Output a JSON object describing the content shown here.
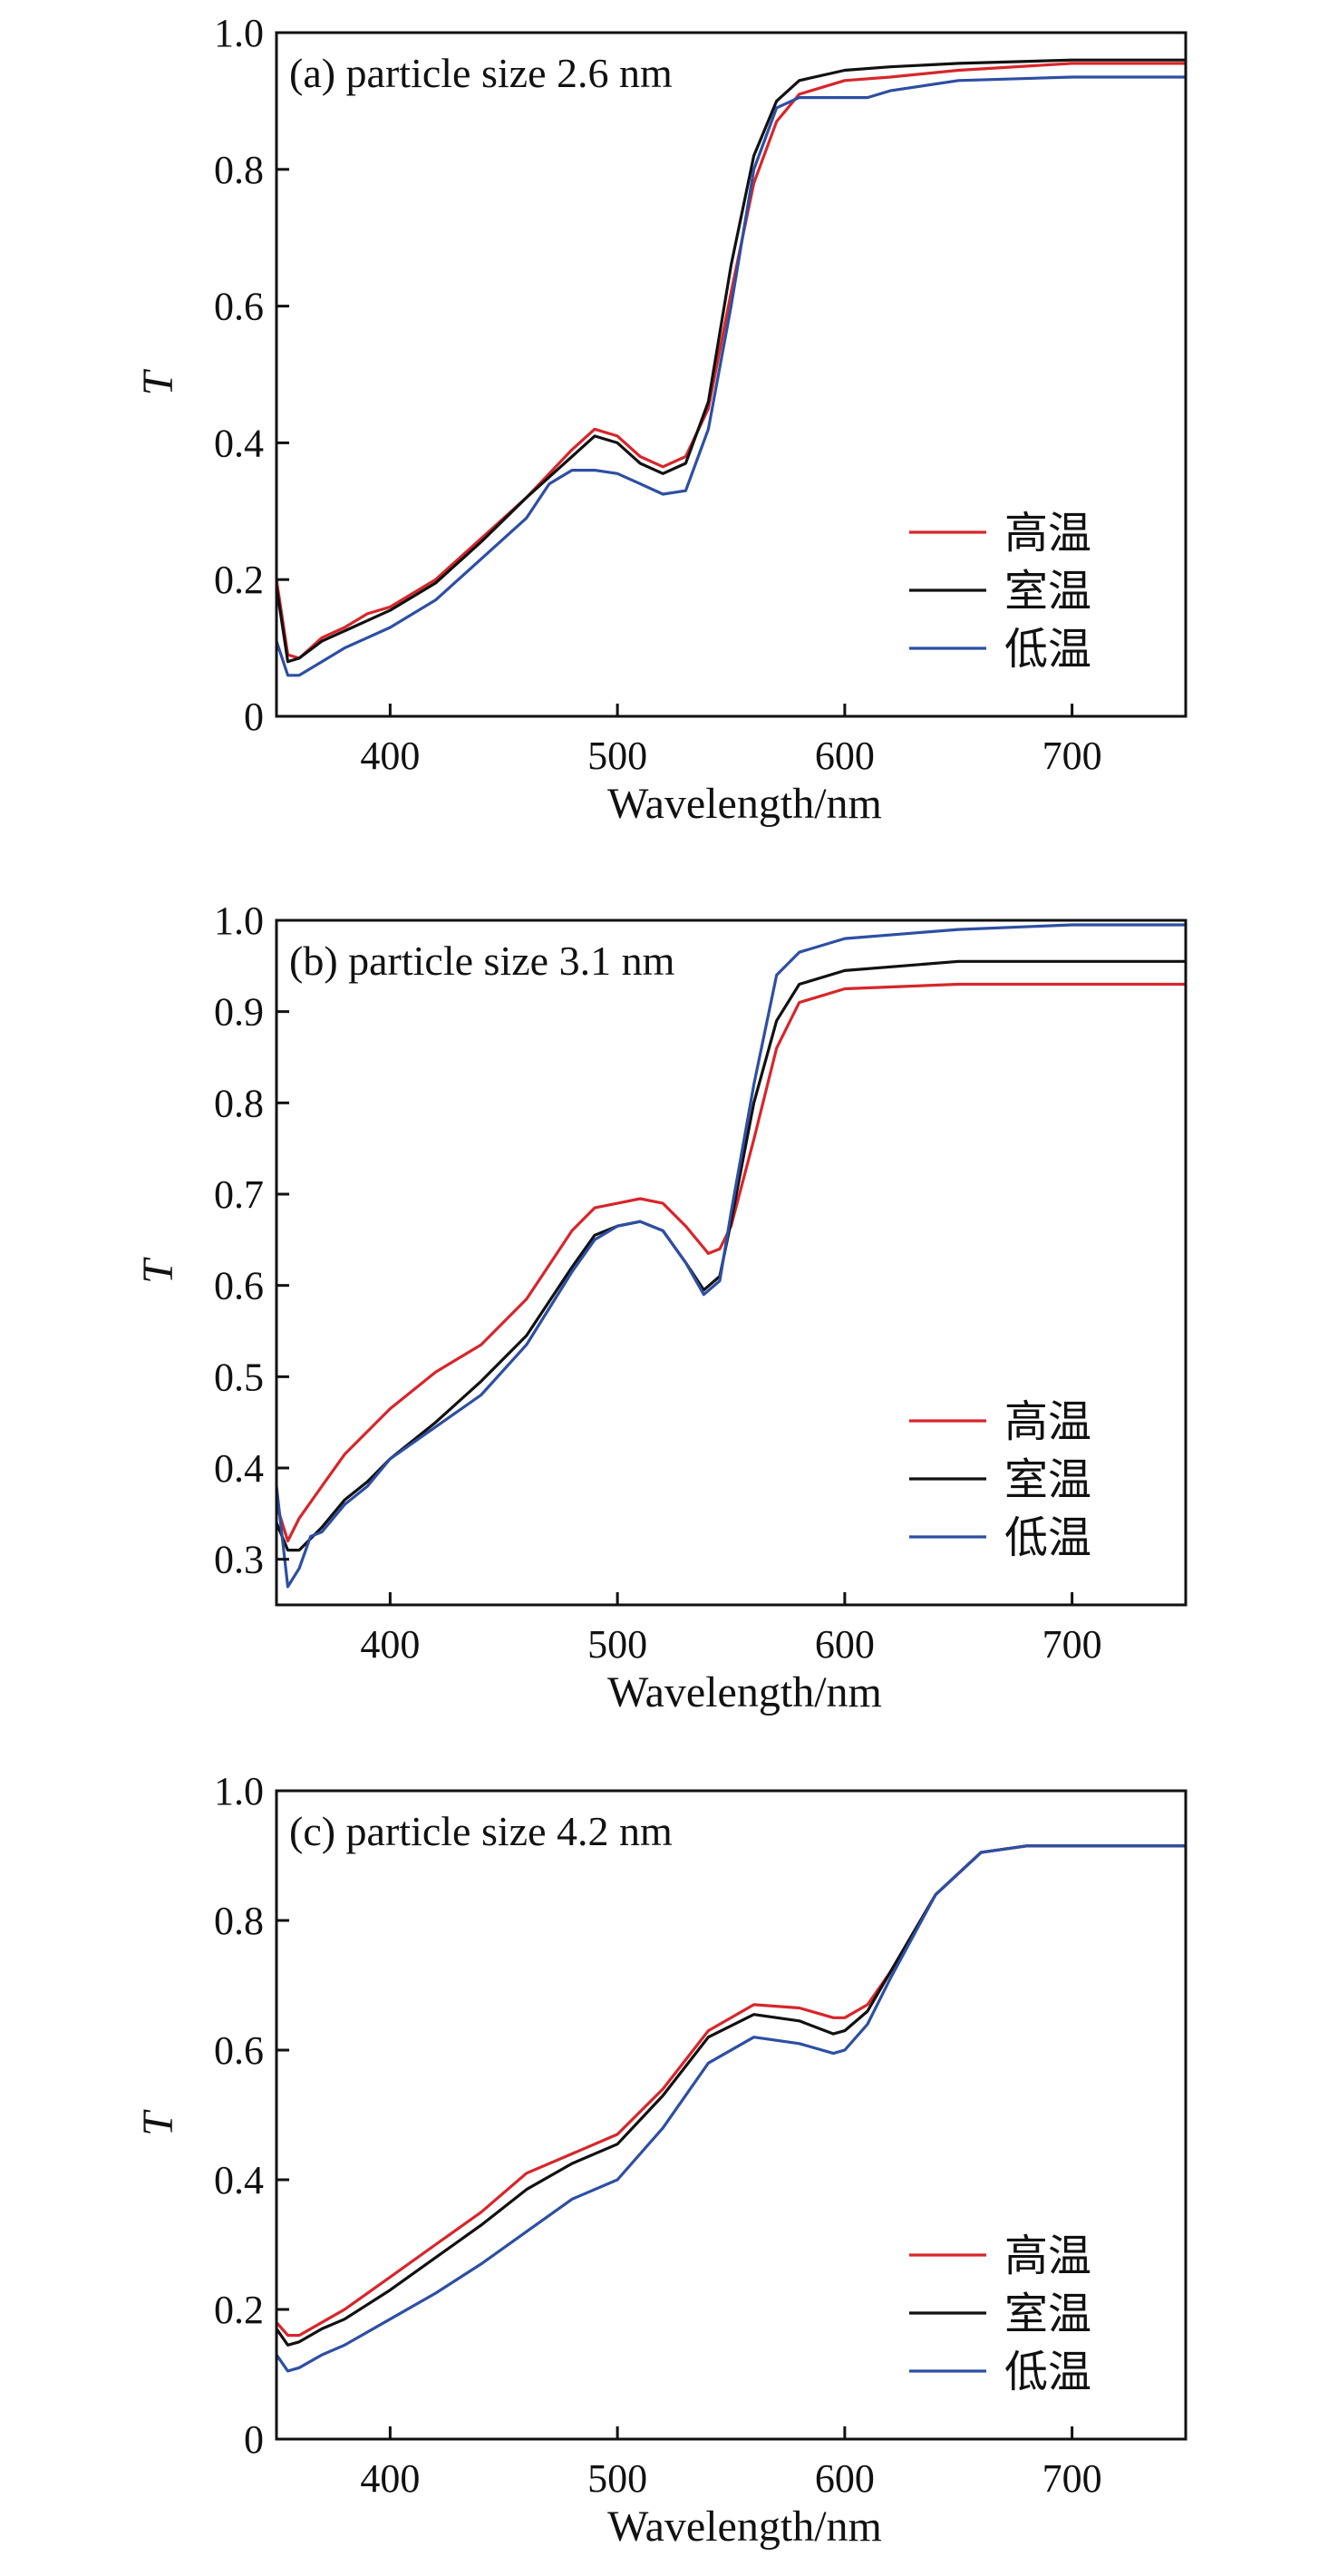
{
  "chart_data": [
    {
      "type": "line",
      "title": "(a) particle size 2.6 nm",
      "xlabel": "Wavelength/nm",
      "ylabel": "T",
      "xlim": [
        350,
        750
      ],
      "ylim": [
        0,
        1.0
      ],
      "xticks": [
        400,
        500,
        600,
        700
      ],
      "xtick_labels": [
        "400",
        "500",
        "600",
        "700"
      ],
      "yticks": [
        0,
        0.2,
        0.4,
        0.6,
        0.8,
        1.0
      ],
      "ytick_labels": [
        "0",
        "0.2",
        "0.4",
        "0.6",
        "0.8",
        "1.0"
      ],
      "legend_position": "bottom-right",
      "series": [
        {
          "name": "高温",
          "color": "#d7262b",
          "x": [
            350,
            355,
            360,
            370,
            380,
            390,
            400,
            420,
            440,
            460,
            480,
            490,
            500,
            510,
            520,
            530,
            540,
            550,
            560,
            570,
            580,
            600,
            620,
            650,
            700,
            750
          ],
          "y": [
            0.2,
            0.09,
            0.085,
            0.115,
            0.13,
            0.15,
            0.16,
            0.2,
            0.26,
            0.32,
            0.39,
            0.42,
            0.41,
            0.38,
            0.365,
            0.38,
            0.45,
            0.62,
            0.78,
            0.87,
            0.91,
            0.93,
            0.935,
            0.945,
            0.955,
            0.955
          ]
        },
        {
          "name": "室温",
          "color": "#111111",
          "x": [
            350,
            355,
            360,
            370,
            380,
            390,
            400,
            420,
            440,
            460,
            480,
            490,
            500,
            510,
            520,
            530,
            540,
            550,
            560,
            570,
            580,
            600,
            620,
            650,
            700,
            750
          ],
          "y": [
            0.19,
            0.08,
            0.085,
            0.11,
            0.125,
            0.14,
            0.155,
            0.195,
            0.255,
            0.32,
            0.38,
            0.41,
            0.4,
            0.37,
            0.355,
            0.37,
            0.46,
            0.66,
            0.82,
            0.9,
            0.93,
            0.945,
            0.95,
            0.955,
            0.96,
            0.96
          ]
        },
        {
          "name": "低温",
          "color": "#2d4fa3",
          "x": [
            350,
            355,
            360,
            370,
            380,
            390,
            400,
            420,
            440,
            460,
            470,
            480,
            490,
            500,
            510,
            520,
            530,
            540,
            550,
            560,
            570,
            580,
            600,
            610,
            620,
            650,
            700,
            750
          ],
          "y": [
            0.11,
            0.06,
            0.06,
            0.08,
            0.1,
            0.115,
            0.13,
            0.17,
            0.23,
            0.29,
            0.34,
            0.36,
            0.36,
            0.355,
            0.34,
            0.325,
            0.33,
            0.42,
            0.6,
            0.8,
            0.89,
            0.905,
            0.905,
            0.905,
            0.915,
            0.93,
            0.935,
            0.935
          ]
        }
      ]
    },
    {
      "type": "line",
      "title": "(b) particle size 3.1 nm",
      "xlabel": "Wavelength/nm",
      "ylabel": "T",
      "xlim": [
        350,
        750
      ],
      "ylim": [
        0.25,
        1.0
      ],
      "xticks": [
        400,
        500,
        600,
        700
      ],
      "xtick_labels": [
        "400",
        "500",
        "600",
        "700"
      ],
      "yticks": [
        0.3,
        0.4,
        0.5,
        0.6,
        0.7,
        0.8,
        0.9,
        1.0
      ],
      "ytick_labels": [
        "0.3",
        "0.4",
        "0.5",
        "0.6",
        "0.7",
        "0.8",
        "0.9",
        "1.0"
      ],
      "legend_position": "bottom-right",
      "series": [
        {
          "name": "高温",
          "color": "#d7262b",
          "x": [
            350,
            355,
            360,
            370,
            380,
            390,
            400,
            420,
            440,
            460,
            480,
            490,
            500,
            510,
            520,
            530,
            540,
            545,
            550,
            560,
            570,
            580,
            600,
            650,
            700,
            750
          ],
          "y": [
            0.36,
            0.32,
            0.345,
            0.38,
            0.415,
            0.44,
            0.465,
            0.505,
            0.535,
            0.585,
            0.66,
            0.685,
            0.69,
            0.695,
            0.69,
            0.665,
            0.635,
            0.64,
            0.665,
            0.76,
            0.86,
            0.91,
            0.925,
            0.93,
            0.93,
            0.93
          ]
        },
        {
          "name": "室温",
          "color": "#111111",
          "x": [
            350,
            355,
            360,
            370,
            380,
            390,
            400,
            420,
            440,
            460,
            480,
            490,
            500,
            510,
            520,
            530,
            538,
            545,
            550,
            560,
            570,
            580,
            600,
            650,
            700,
            750
          ],
          "y": [
            0.34,
            0.31,
            0.31,
            0.335,
            0.365,
            0.385,
            0.41,
            0.45,
            0.495,
            0.545,
            0.62,
            0.655,
            0.665,
            0.67,
            0.66,
            0.625,
            0.595,
            0.61,
            0.67,
            0.8,
            0.89,
            0.93,
            0.945,
            0.955,
            0.955,
            0.955
          ]
        },
        {
          "name": "低温",
          "color": "#2d4fa3",
          "x": [
            350,
            355,
            360,
            365,
            370,
            380,
            390,
            400,
            420,
            440,
            460,
            480,
            490,
            500,
            510,
            520,
            530,
            538,
            545,
            550,
            560,
            570,
            580,
            600,
            650,
            700,
            750
          ],
          "y": [
            0.38,
            0.27,
            0.29,
            0.325,
            0.33,
            0.36,
            0.38,
            0.41,
            0.445,
            0.48,
            0.535,
            0.615,
            0.65,
            0.665,
            0.67,
            0.66,
            0.625,
            0.59,
            0.605,
            0.68,
            0.82,
            0.94,
            0.965,
            0.98,
            0.99,
            0.995,
            0.995
          ]
        }
      ]
    },
    {
      "type": "line",
      "title": "(c) particle size 4.2 nm",
      "xlabel": "Wavelength/nm",
      "ylabel": "T",
      "xlim": [
        350,
        750
      ],
      "ylim": [
        0,
        1.0
      ],
      "xticks": [
        400,
        500,
        600,
        700
      ],
      "xtick_labels": [
        "400",
        "500",
        "600",
        "700"
      ],
      "yticks": [
        0,
        0.2,
        0.4,
        0.6,
        0.8,
        1.0
      ],
      "ytick_labels": [
        "0",
        "0.2",
        "0.4",
        "0.6",
        "0.8",
        "1.0"
      ],
      "legend_position": "bottom-right",
      "series": [
        {
          "name": "高温",
          "color": "#d7262b",
          "x": [
            350,
            355,
            360,
            370,
            380,
            400,
            420,
            440,
            460,
            480,
            500,
            520,
            540,
            560,
            580,
            595,
            600,
            610,
            620,
            640,
            660,
            680,
            700,
            750
          ],
          "y": [
            0.18,
            0.16,
            0.16,
            0.18,
            0.2,
            0.25,
            0.3,
            0.35,
            0.41,
            0.44,
            0.47,
            0.54,
            0.63,
            0.67,
            0.665,
            0.65,
            0.65,
            0.67,
            0.72,
            0.84,
            0.905,
            0.915,
            0.915,
            0.915
          ]
        },
        {
          "name": "室温",
          "color": "#111111",
          "x": [
            350,
            355,
            360,
            370,
            380,
            400,
            420,
            440,
            460,
            480,
            500,
            520,
            540,
            560,
            580,
            595,
            600,
            610,
            620,
            640,
            660,
            680,
            700,
            750
          ],
          "y": [
            0.17,
            0.145,
            0.15,
            0.17,
            0.185,
            0.23,
            0.28,
            0.33,
            0.385,
            0.425,
            0.455,
            0.53,
            0.62,
            0.655,
            0.645,
            0.625,
            0.63,
            0.66,
            0.72,
            0.84,
            0.905,
            0.915,
            0.915,
            0.915
          ]
        },
        {
          "name": "低温",
          "color": "#2d4fa3",
          "x": [
            350,
            355,
            360,
            370,
            380,
            400,
            420,
            440,
            460,
            480,
            500,
            520,
            540,
            560,
            580,
            595,
            600,
            610,
            620,
            640,
            660,
            680,
            700,
            750
          ],
          "y": [
            0.13,
            0.105,
            0.11,
            0.13,
            0.145,
            0.185,
            0.225,
            0.27,
            0.32,
            0.37,
            0.4,
            0.48,
            0.58,
            0.62,
            0.61,
            0.595,
            0.6,
            0.64,
            0.71,
            0.84,
            0.905,
            0.915,
            0.915,
            0.915
          ]
        }
      ]
    }
  ]
}
